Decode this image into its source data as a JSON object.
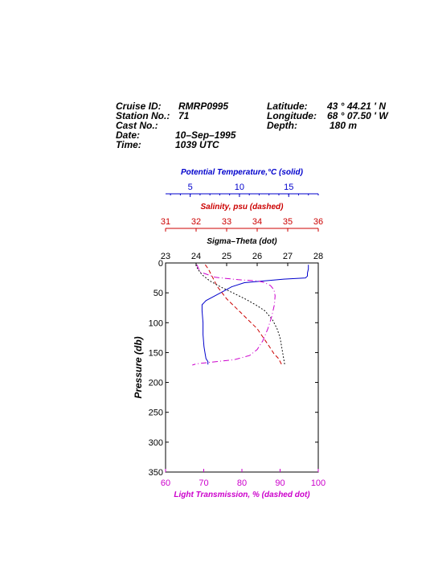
{
  "header": {
    "cruise_label": "Cruise ID:",
    "cruise_value": "RMRP0995",
    "station_label": "Station No.:",
    "station_value": "71",
    "cast_label": "Cast No.:",
    "cast_value": "",
    "date_label": "Date:",
    "date_value": "10–Sep–1995",
    "time_label": "Time:",
    "time_value": "1039 UTC",
    "lat_label": "Latitude:",
    "lat_value": "43 ° 44.21 ' N",
    "lon_label": "Longitude:",
    "lon_value": "68 ° 07.50 ' W",
    "depth_label": "Depth:",
    "depth_value": "180 m"
  },
  "colors": {
    "temperature": "#0000cc",
    "salinity": "#cc0000",
    "sigma": "#000000",
    "transmission": "#cc00cc"
  },
  "chart_data": {
    "type": "line",
    "ylabel": "Pressure (db)",
    "ylim": [
      0,
      350
    ],
    "y_inverted": true,
    "y_ticks": [
      "0",
      "50",
      "100",
      "150",
      "200",
      "250",
      "300",
      "350"
    ],
    "axes": {
      "temperature": {
        "label": "Potential Temperature,°C (solid)",
        "range": [
          2.5,
          18
        ],
        "ticks": [
          "5",
          "10",
          "15"
        ]
      },
      "salinity": {
        "label": "Salinity, psu  (dashed)",
        "range": [
          31,
          36
        ],
        "ticks": [
          "31",
          "32",
          "33",
          "34",
          "35",
          "36"
        ]
      },
      "sigma": {
        "label": "Sigma–Theta (dot)",
        "range": [
          23,
          28
        ],
        "ticks": [
          "23",
          "24",
          "25",
          "26",
          "27",
          "28"
        ]
      },
      "transmission": {
        "label": "Light Transmission, % (dashed dot)",
        "range": [
          60,
          100
        ],
        "ticks": [
          "60",
          "70",
          "80",
          "90",
          "100"
        ]
      }
    },
    "series": [
      {
        "name": "Potential Temperature",
        "style": "solid",
        "x": [
          17.0,
          17.0,
          16.9,
          16.9,
          16.7,
          14.5,
          10.5,
          9.2,
          8.3,
          7.4,
          6.6,
          6.2,
          6.2,
          6.3,
          6.3,
          6.4,
          6.5,
          6.6,
          6.8,
          6.8
        ],
        "y": [
          3,
          10,
          17,
          22,
          25,
          27,
          33,
          40,
          48,
          56,
          63,
          70,
          80,
          100,
          120,
          140,
          150,
          160,
          165,
          170
        ]
      },
      {
        "name": "Salinity",
        "style": "dashed",
        "x": [
          32.3,
          32.4,
          32.5,
          32.6,
          32.7,
          32.85,
          33.0,
          33.2,
          33.4,
          33.7,
          34.0,
          34.2,
          34.4,
          34.55,
          34.7,
          34.8
        ],
        "y": [
          3,
          10,
          20,
          30,
          40,
          50,
          60,
          70,
          80,
          95,
          110,
          125,
          140,
          152,
          160,
          170
        ]
      },
      {
        "name": "Sigma-Theta",
        "style": "dot",
        "x": [
          24.0,
          24.05,
          24.2,
          24.45,
          24.8,
          25.2,
          25.6,
          25.95,
          26.25,
          26.5,
          26.65,
          26.75,
          26.8,
          26.85,
          26.9
        ],
        "y": [
          3,
          10,
          20,
          30,
          40,
          50,
          60,
          70,
          80,
          95,
          110,
          125,
          140,
          155,
          170
        ]
      },
      {
        "name": "Light Transmission",
        "style": "dashdot",
        "x": [
          68.2,
          69.0,
          73.0,
          79.0,
          84.0,
          86.0,
          87.5,
          88.4,
          88.7,
          88.5,
          87.8,
          86.8,
          85.5,
          84.0,
          82.0,
          78.0,
          72.0,
          68.0,
          67.0
        ],
        "y": [
          3,
          15,
          24,
          28,
          30,
          33,
          38,
          45,
          55,
          70,
          90,
          110,
          130,
          145,
          155,
          162,
          166,
          169,
          171
        ]
      }
    ]
  }
}
